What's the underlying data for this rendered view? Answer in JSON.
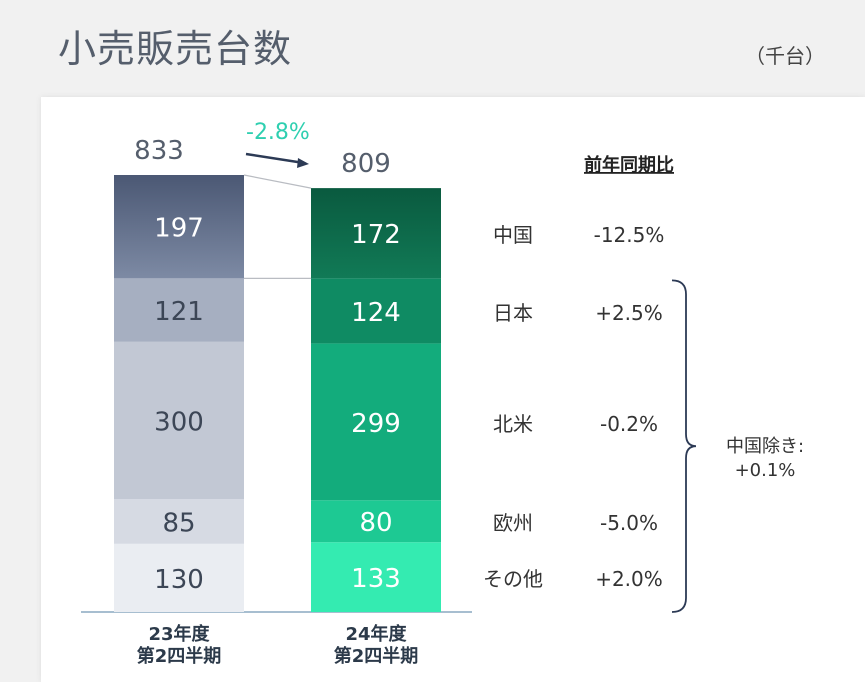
{
  "page": {
    "title": "小売販売台数",
    "unit": "（千台）"
  },
  "chart_data": {
    "type": "bar",
    "stacked": true,
    "categories": [
      "23年度\n第2四半期",
      "24年度\n第2四半期"
    ],
    "category_lines": [
      [
        "23年度",
        "第2四半期"
      ],
      [
        "24年度",
        "第2四半期"
      ]
    ],
    "totals": [
      833,
      809
    ],
    "change_label": "-2.8%",
    "series": [
      {
        "name": "中国",
        "values": [
          197,
          172
        ],
        "yoy": "-12.5%",
        "colors": [
          "#5c6a86",
          "#0e6a4b"
        ]
      },
      {
        "name": "日本",
        "values": [
          121,
          124
        ],
        "yoy": "+2.5%",
        "colors": [
          "#a6afc1",
          "#0f8b63"
        ]
      },
      {
        "name": "北米",
        "values": [
          300,
          299
        ],
        "yoy": "-0.2%",
        "colors": [
          "#c2c8d4",
          "#13ac7c"
        ]
      },
      {
        "name": "欧州",
        "values": [
          85,
          80
        ],
        "yoy": "-5.0%",
        "colors": [
          "#d6dae3",
          "#1dc993"
        ]
      },
      {
        "name": "その他",
        "values": [
          130,
          133
        ],
        "yoy": "+2.0%",
        "colors": [
          "#eaedf2",
          "#34ebb1"
        ]
      }
    ],
    "yoy_header": "前年同期比",
    "brace_note": [
      "中国除き:",
      "+0.1%"
    ]
  }
}
